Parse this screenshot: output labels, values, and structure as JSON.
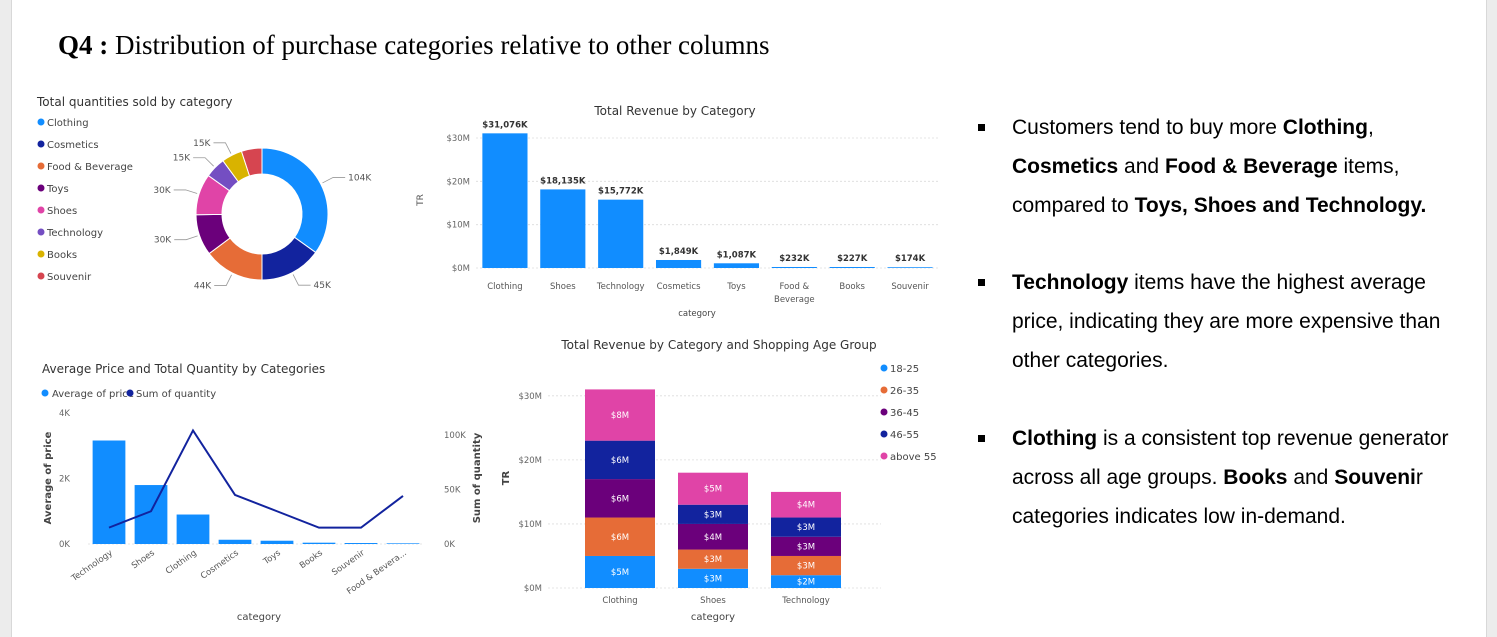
{
  "page": {
    "title_prefix": "Q4  :",
    "title_text": " Distribution of purchase categories relative to other columns"
  },
  "bullets": [
    {
      "parts": [
        {
          "text": "Customers tend to buy more ",
          "bold": false
        },
        {
          "text": "Clothing",
          "bold": true
        },
        {
          "text": ", ",
          "bold": false
        },
        {
          "text": "Cosmetics",
          "bold": true
        },
        {
          "text": " and ",
          "bold": false
        },
        {
          "text": "Food & Beverage",
          "bold": true
        },
        {
          "text": " items, compared to ",
          "bold": false
        },
        {
          "text": "Toys, Shoes and Technology.",
          "bold": true
        }
      ]
    },
    {
      "parts": [
        {
          "text": "Technology",
          "bold": true
        },
        {
          "text": " items have the highest average price, indicating they are more expensive than other categories.",
          "bold": false
        }
      ]
    },
    {
      "parts": [
        {
          "text": "Clothing",
          "bold": true
        },
        {
          "text": " is a consistent top revenue generator across all age groups. ",
          "bold": false
        },
        {
          "text": "Books",
          "bold": true
        },
        {
          "text": " and ",
          "bold": false
        },
        {
          "text": "Souveni",
          "bold": true
        },
        {
          "text": "r categories indicates low in-demand.",
          "bold": false
        }
      ]
    }
  ],
  "chart_data": [
    {
      "type": "pie",
      "variant": "donut",
      "title": "Total quantities sold by category",
      "legend": "left",
      "categories": [
        "Clothing",
        "Cosmetics",
        "Food & Beverage",
        "Toys",
        "Shoes",
        "Technology",
        "Books",
        "Souvenir"
      ],
      "values": [
        104000,
        45000,
        44000,
        30000,
        30000,
        15000,
        15000,
        15000
      ],
      "labels": [
        "104K",
        "45K",
        "44K",
        "30K",
        "30K",
        "15K",
        "15K",
        ""
      ],
      "colors": [
        "#118DFF",
        "#12239E",
        "#E66C37",
        "#6B007B",
        "#E044A7",
        "#744EC2",
        "#D9B300",
        "#D64550"
      ]
    },
    {
      "type": "bar",
      "title": "Total Revenue by Category",
      "xlabel": "category",
      "ylabel": "TR",
      "categories": [
        "Clothing",
        "Shoes",
        "Technology",
        "Cosmetics",
        "Toys",
        "Food & Beverage",
        "Books",
        "Souvenir"
      ],
      "category_lines": [
        [
          "Clothing"
        ],
        [
          "Shoes"
        ],
        [
          "Technology"
        ],
        [
          "Cosmetics"
        ],
        [
          "Toys"
        ],
        [
          "Food &",
          "Beverage"
        ],
        [
          "Books"
        ],
        [
          "Souvenir"
        ]
      ],
      "values": [
        31076,
        18135,
        15772,
        1849,
        1087,
        232,
        227,
        174
      ],
      "data_labels": [
        "$31,076K",
        "$18,135K",
        "$15,772K",
        "$1,849K",
        "$1,087K",
        "$232K",
        "$227K",
        "$174K"
      ],
      "yticks": [
        0,
        10000,
        20000,
        30000
      ],
      "ytick_labels": [
        "$0M",
        "$10M",
        "$20M",
        "$30M"
      ],
      "ylim": [
        0,
        33000
      ],
      "color": "#118DFF",
      "grid": true
    },
    {
      "type": "bar+line",
      "title": "Average Price and Total Quantity by Categories",
      "xlabel": "category",
      "ylabel": "Average of price",
      "y2label": "Sum of quantity",
      "legend": "top-left",
      "categories": [
        "Technology",
        "Shoes",
        "Clothing",
        "Cosmetics",
        "Toys",
        "Books",
        "Souvenir",
        "Food & Bevera..."
      ],
      "series": [
        {
          "name": "Average of price",
          "kind": "bar",
          "axis": "left",
          "values": [
            3160,
            1800,
            900,
            130,
            100,
            40,
            30,
            20
          ],
          "color": "#118DFF"
        },
        {
          "name": "Sum of quantity",
          "kind": "line",
          "axis": "right",
          "values": [
            15000,
            30000,
            104000,
            45000,
            30000,
            15000,
            15000,
            44000
          ],
          "color": "#12239E"
        }
      ],
      "yticks": [
        0,
        2000,
        4000
      ],
      "ytick_labels": [
        "0K",
        "2K",
        "4K"
      ],
      "ylim": [
        0,
        4000
      ],
      "y2ticks": [
        0,
        50000,
        100000
      ],
      "y2tick_labels": [
        "0K",
        "50K",
        "100K"
      ],
      "y2lim": [
        0,
        120000
      ]
    },
    {
      "type": "bar",
      "variant": "stacked",
      "title": "Total Revenue by Category and Shopping Age Group",
      "xlabel": "category",
      "ylabel": "TR",
      "legend": "right",
      "categories": [
        "Clothing",
        "Shoes",
        "Technology"
      ],
      "series": [
        {
          "name": "18-25",
          "values": [
            5,
            3,
            2
          ],
          "labels": [
            "$5M",
            "$3M",
            "$2M"
          ],
          "color": "#118DFF"
        },
        {
          "name": "26-35",
          "values": [
            6,
            3,
            3
          ],
          "labels": [
            "$6M",
            "$3M",
            "$3M"
          ],
          "color": "#E66C37"
        },
        {
          "name": "36-45",
          "values": [
            6,
            4,
            3
          ],
          "labels": [
            "$6M",
            "$4M",
            "$3M"
          ],
          "color": "#6B007B"
        },
        {
          "name": "46-55",
          "values": [
            6,
            3,
            3
          ],
          "labels": [
            "$6M",
            "$3M",
            "$3M"
          ],
          "color": "#12239E"
        },
        {
          "name": "above 55",
          "values": [
            8,
            5,
            4
          ],
          "labels": [
            "$8M",
            "$5M",
            "$4M"
          ],
          "color": "#E044A7"
        }
      ],
      "yticks": [
        0,
        10,
        20,
        30
      ],
      "ytick_labels": [
        "$0M",
        "$10M",
        "$20M",
        "$30M"
      ],
      "ylim": [
        0,
        32
      ]
    }
  ]
}
